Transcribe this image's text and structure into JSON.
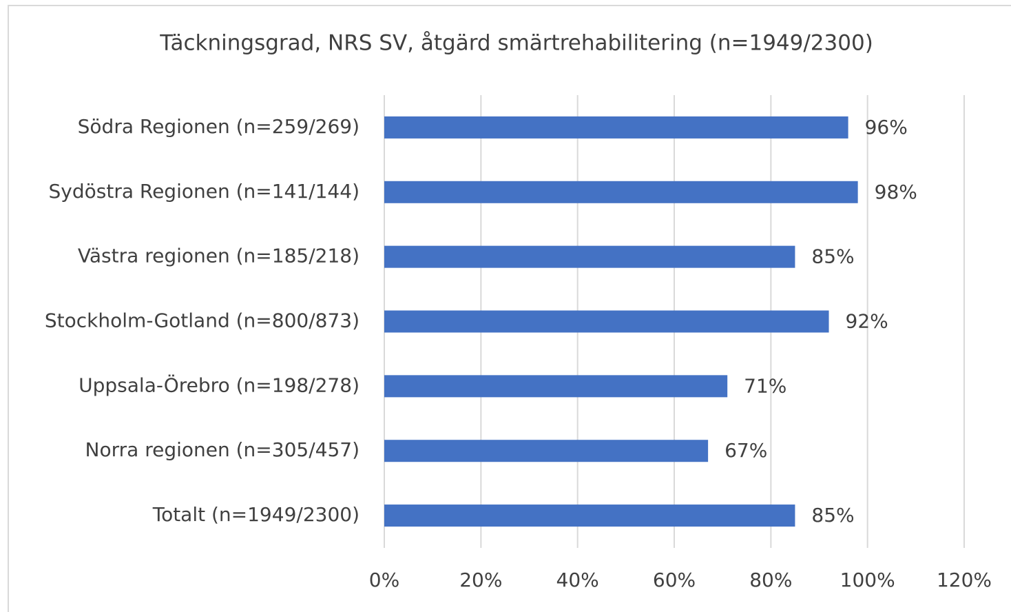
{
  "chart_data": {
    "type": "barh",
    "title": "Täckningsgrad, NRS SV, åtgärd smärtrehabilitering (n=1949/2300)",
    "categories": [
      "Södra Regionen (n=259/269)",
      "Sydöstra Regionen (n=141/144)",
      "Västra regionen (n=185/218)",
      "Stockholm-Gotland (n=800/873)",
      "Uppsala-Örebro (n=198/278)",
      "Norra regionen (n=305/457)",
      "Totalt (n=1949/2300)"
    ],
    "values": [
      96,
      98,
      85,
      92,
      71,
      67,
      85
    ],
    "value_labels": [
      "96%",
      "98%",
      "85%",
      "92%",
      "71%",
      "67%",
      "85%"
    ],
    "color": "#4472c4",
    "xlim": [
      0,
      120
    ],
    "xticks": [
      {
        "value": 0,
        "label": "0%"
      },
      {
        "value": 20,
        "label": "20%"
      },
      {
        "value": 40,
        "label": "40%"
      },
      {
        "value": 60,
        "label": "60%"
      },
      {
        "value": 80,
        "label": "80%"
      },
      {
        "value": 100,
        "label": "100%"
      },
      {
        "value": 120,
        "label": "120%"
      }
    ],
    "grid": true
  }
}
